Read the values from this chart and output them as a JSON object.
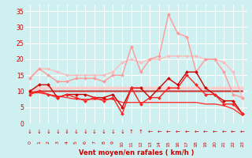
{
  "x": [
    0,
    1,
    2,
    3,
    4,
    5,
    6,
    7,
    8,
    9,
    10,
    11,
    12,
    13,
    14,
    15,
    16,
    17,
    18,
    19,
    20,
    21,
    22,
    23
  ],
  "series": [
    {
      "label": "rafales_light_pink",
      "color": "#ffbbbb",
      "lw": 1.0,
      "marker": "D",
      "markersize": 2.0,
      "values": [
        14,
        17,
        17,
        16,
        15,
        15,
        15,
        15,
        15,
        16,
        19,
        20,
        19,
        20,
        20,
        21,
        21,
        21,
        21,
        20,
        20,
        19,
        16,
        8
      ]
    },
    {
      "label": "rafales_pink",
      "color": "#ff9999",
      "lw": 1.0,
      "marker": "D",
      "markersize": 2.0,
      "values": [
        14,
        17,
        15,
        13,
        13,
        14,
        14,
        14,
        13,
        15,
        15,
        24,
        16,
        20,
        21,
        34,
        28,
        27,
        16,
        20,
        20,
        16,
        9,
        8
      ]
    },
    {
      "label": "vent_flat_lightpink",
      "color": "#ffcccc",
      "lw": 2.5,
      "marker": null,
      "markersize": 0,
      "values": [
        10,
        11,
        11,
        11,
        11,
        11,
        11,
        11,
        11,
        11,
        11,
        11,
        11,
        11,
        11,
        11,
        11,
        11,
        11,
        11,
        11,
        11,
        11,
        11
      ]
    },
    {
      "label": "vent_flat_darkred",
      "color": "#cc3333",
      "lw": 1.5,
      "marker": null,
      "markersize": 0,
      "values": [
        9.5,
        10,
        10,
        10,
        10,
        10,
        10,
        10,
        10,
        10,
        10,
        10,
        10,
        10,
        10,
        10,
        10,
        10,
        10,
        10,
        10,
        10,
        10,
        10
      ]
    },
    {
      "label": "vent_decline_red",
      "color": "#ff3333",
      "lw": 1.0,
      "marker": null,
      "markersize": 0,
      "values": [
        9.5,
        9.5,
        9,
        8.5,
        8,
        7.5,
        7.5,
        7.5,
        7.5,
        7.5,
        6.5,
        6.5,
        6.5,
        6.5,
        6.5,
        6.5,
        6.5,
        6.5,
        6.5,
        6,
        6,
        5.5,
        4.5,
        2.5
      ]
    },
    {
      "label": "vent_markers_dark",
      "color": "#cc0000",
      "lw": 1.0,
      "marker": "D",
      "markersize": 2.0,
      "values": [
        10,
        12,
        12,
        8,
        9,
        9,
        9,
        8,
        8,
        9,
        5,
        11,
        11,
        8,
        11,
        14,
        12,
        16,
        16,
        11,
        9,
        7,
        7,
        3
      ]
    },
    {
      "label": "vent_markers_red",
      "color": "#ff2222",
      "lw": 1.0,
      "marker": "D",
      "markersize": 2.0,
      "values": [
        9,
        10,
        9,
        8,
        9,
        8,
        7,
        8,
        7,
        8,
        3,
        11,
        6,
        8,
        8,
        11,
        11,
        15,
        12,
        9,
        9,
        6,
        6,
        3
      ]
    }
  ],
  "xlim": [
    -0.5,
    23.5
  ],
  "ylim": [
    0,
    37
  ],
  "yticks": [
    0,
    5,
    10,
    15,
    20,
    25,
    30,
    35
  ],
  "xticks": [
    0,
    1,
    2,
    3,
    4,
    5,
    6,
    7,
    8,
    9,
    10,
    11,
    12,
    13,
    14,
    15,
    16,
    17,
    18,
    19,
    20,
    21,
    22,
    23
  ],
  "xlabel": "Vent moyen/en rafales ( km/h )",
  "bg_color": "#cff0f0",
  "grid_color": "#ffffff",
  "tick_color": "#cc0000",
  "label_color": "#cc0000",
  "arrow_symbols": [
    "↓",
    "↓",
    "↓",
    "↓",
    "⇓",
    "↓",
    "↓",
    "↓",
    "↓",
    "↓",
    "↓",
    "↑",
    "↑",
    "←",
    "←",
    "←",
    "←",
    "←",
    "←",
    "←",
    "←",
    "←",
    "←",
    "←"
  ]
}
